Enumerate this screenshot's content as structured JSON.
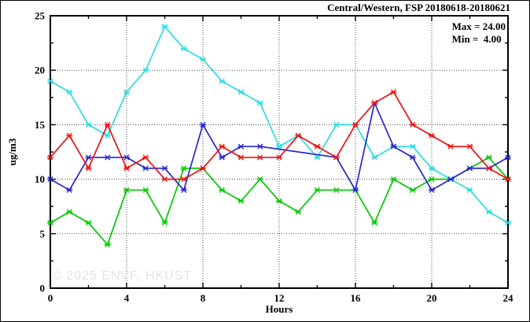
{
  "figure": {
    "title": "Central/Western, FSP 20180618-20180621",
    "legend": {
      "max_label": "Max = 24.00",
      "min_label": "Min =  4.00"
    },
    "watermark": "© 2025 ENVF, HKUST"
  },
  "chart_data": {
    "type": "line",
    "title": "Central/Western, FSP 20180618-20180621",
    "xlabel": "Hours",
    "ylabel": "ug/m3",
    "xlim": [
      0,
      24
    ],
    "ylim": [
      0,
      25
    ],
    "x_ticks": [
      0,
      4,
      8,
      12,
      16,
      20,
      24
    ],
    "y_ticks": [
      0,
      5,
      10,
      15,
      20,
      25
    ],
    "x_minor_step": 2,
    "y_minor_step": 2.5,
    "grid": "dotted lines at interior major ticks, both axes",
    "legend_position": "top-right",
    "stats": {
      "max": 24.0,
      "min": 4.0
    },
    "x": [
      0,
      1,
      2,
      3,
      4,
      5,
      6,
      7,
      8,
      9,
      10,
      11,
      12,
      13,
      14,
      15,
      16,
      17,
      18,
      19,
      20,
      21,
      22,
      23,
      24
    ],
    "series": [
      {
        "name": "green-series",
        "color": "#00c800",
        "values": [
          6,
          7,
          6,
          4,
          9,
          9,
          6,
          11,
          11,
          9,
          8,
          10,
          8,
          7,
          9,
          9,
          9,
          6,
          10,
          9,
          10,
          10,
          11,
          12,
          10
        ]
      },
      {
        "name": "cyan-series",
        "color": "#2bdce2",
        "values": [
          19,
          18,
          15,
          14,
          18,
          20,
          24,
          22,
          21,
          19,
          18,
          17,
          13,
          14,
          12,
          15,
          15,
          12,
          13,
          13,
          11,
          10,
          9,
          7,
          6
        ]
      },
      {
        "name": "blue-series",
        "color": "#2626cc",
        "values": [
          10,
          9,
          12,
          12,
          12,
          11,
          11,
          9,
          15,
          12,
          13,
          13,
          null,
          null,
          null,
          12,
          9,
          17,
          13,
          12,
          9,
          10,
          11,
          11,
          12
        ]
      },
      {
        "name": "red-series",
        "color": "#ee1111",
        "values": [
          12,
          14,
          11,
          15,
          11,
          12,
          10,
          10,
          11,
          13,
          12,
          12,
          12,
          14,
          13,
          12,
          15,
          17,
          18,
          15,
          14,
          13,
          13,
          11,
          10
        ]
      }
    ]
  }
}
